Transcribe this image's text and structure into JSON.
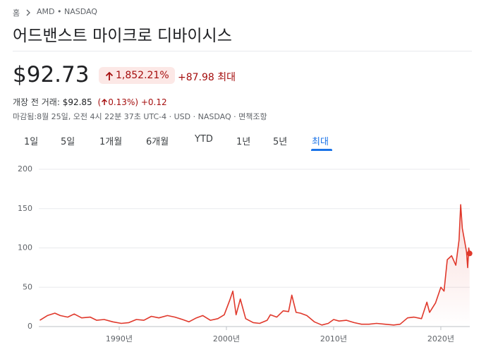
{
  "breadcrumb": {
    "home": "홈",
    "ticker": "AMD • NASDAQ"
  },
  "header": {
    "title": "어드밴스트 마이크로 디바이시스",
    "price": "$92.73",
    "change_percent": "1,852.21%",
    "change_value": "+87.98 최대"
  },
  "premarket": {
    "label": "개장 전 거래:",
    "price": "$92.85",
    "percent_open": "(",
    "percent": "0.13%)",
    "value": "+0.12"
  },
  "status": "마감됨:8월 25일, 오전 4시 22분 37초 UTC-4 · USD · NASDAQ · 면책조항",
  "tabs": [
    "1일",
    "5일",
    "1개월",
    "6개월",
    "YTD",
    "1년",
    "5년",
    "최대"
  ],
  "active_tab": 7,
  "chart_data": {
    "type": "line",
    "color": "#e0382b",
    "grid": true,
    "x": [
      1982.6,
      1983.3,
      1984.0,
      1984.5,
      1985.2,
      1985.8,
      1986.5,
      1987.3,
      1987.9,
      1988.6,
      1989.4,
      1990.2,
      1990.9,
      1991.6,
      1992.3,
      1993.0,
      1993.7,
      1994.5,
      1995.2,
      1995.9,
      1996.5,
      1997.2,
      1997.8,
      1998.5,
      1999.2,
      1999.8,
      2000.3,
      2000.6,
      2000.9,
      2001.3,
      2001.8,
      2002.5,
      2003.1,
      2003.8,
      2004.1,
      2004.7,
      2005.3,
      2005.8,
      2006.1,
      2006.5,
      2006.9,
      2007.5,
      2008.2,
      2008.9,
      2009.5,
      2010.0,
      2010.5,
      2011.2,
      2011.9,
      2012.6,
      2013.3,
      2014.0,
      2014.8,
      2015.6,
      2016.2,
      2016.9,
      2017.5,
      2018.2,
      2018.7,
      2018.95,
      2019.5,
      2020.0,
      2020.3,
      2020.6,
      2021.0,
      2021.4,
      2021.7,
      2021.85,
      2022.0,
      2022.2,
      2022.4,
      2022.5,
      2022.6,
      2022.68
    ],
    "values": [
      8,
      14,
      17,
      14,
      12,
      16,
      11,
      12,
      8,
      9,
      6,
      4,
      5,
      9,
      8,
      13,
      11,
      14,
      12,
      9,
      6,
      11,
      14,
      8,
      10,
      15,
      33,
      45,
      15,
      35,
      10,
      5,
      4,
      8,
      15,
      12,
      20,
      19,
      40,
      18,
      17,
      14,
      6,
      2,
      4,
      9,
      7,
      8,
      5,
      3,
      3,
      4,
      3,
      2,
      3,
      11,
      12,
      10,
      31,
      18,
      30,
      50,
      45,
      85,
      90,
      78,
      110,
      155,
      125,
      110,
      95,
      75,
      100,
      93
    ],
    "xlim": [
      1982.5,
      2022.7
    ],
    "ylim": [
      0,
      200
    ],
    "yticks": [
      0,
      50,
      100,
      150,
      200
    ],
    "xticks": [
      {
        "value": 1990,
        "label": "1990년"
      },
      {
        "value": 2000,
        "label": "2000년"
      },
      {
        "value": 2010,
        "label": "2010년"
      },
      {
        "value": 2020,
        "label": "2020년"
      }
    ]
  }
}
